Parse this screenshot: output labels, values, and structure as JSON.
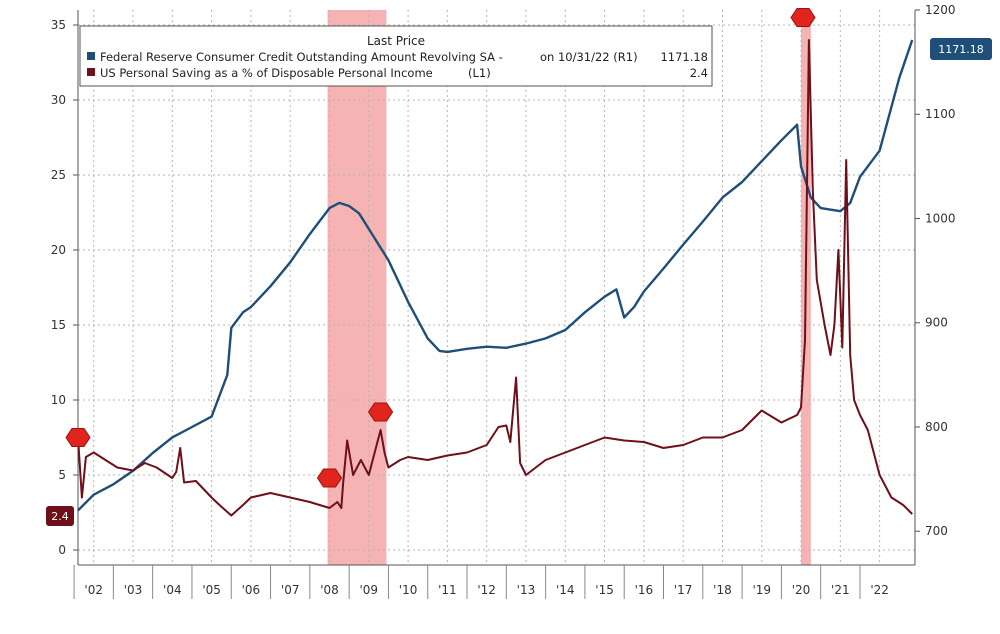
{
  "chart_data": {
    "type": "line",
    "legend_title": "Last Price",
    "x_tick_labels": [
      "'02",
      "'03",
      "'04",
      "'05",
      "'06",
      "'07",
      "'08",
      "'09",
      "'10",
      "'11",
      "'12",
      "'13",
      "'14",
      "'15",
      "'16",
      "'17",
      "'18",
      "'19",
      "'20",
      "'21",
      "'22"
    ],
    "x_range": [
      2001.6,
      2022.9
    ],
    "y_left": {
      "range": [
        -1,
        36
      ],
      "ticks": [
        0,
        5,
        10,
        15,
        20,
        25,
        30,
        35
      ]
    },
    "y_right": {
      "range": [
        667.6,
        1200
      ],
      "ticks": [
        700,
        800,
        900,
        1000,
        1100,
        1200
      ]
    },
    "grid": true,
    "legend_placement": "top",
    "shaded_periods": [
      {
        "start": 2007.95,
        "end": 2009.45
      },
      {
        "start": 2020.0,
        "end": 2020.25
      }
    ],
    "series": [
      {
        "name": "Federal Reserve Consumer Credit Outstanding Amount Revolving SA -",
        "legend_suffix": "on 10/31/22  (R1)",
        "last_value": "1171.18",
        "axis": "right",
        "color": "#1f4e79",
        "x": [
          2001.6,
          2002.0,
          2002.5,
          2003.0,
          2003.5,
          2004.0,
          2004.5,
          2005.0,
          2005.4,
          2005.5,
          2005.8,
          2006.0,
          2006.5,
          2007.0,
          2007.5,
          2008.0,
          2008.25,
          2008.5,
          2008.75,
          2009.0,
          2009.5,
          2010.0,
          2010.5,
          2010.8,
          2011.0,
          2011.5,
          2012.0,
          2012.5,
          2013.0,
          2013.5,
          2014.0,
          2014.5,
          2015.0,
          2015.3,
          2015.5,
          2015.75,
          2016.0,
          2016.5,
          2017.0,
          2017.5,
          2018.0,
          2018.5,
          2019.0,
          2019.5,
          2019.9,
          2020.0,
          2020.25,
          2020.5,
          2021.0,
          2021.25,
          2021.5,
          2022.0,
          2022.5,
          2022.83
        ],
        "values": [
          720,
          735,
          745,
          758,
          775,
          790,
          800,
          810,
          850,
          895,
          910,
          915,
          935,
          958,
          985,
          1010,
          1015,
          1012,
          1005,
          990,
          960,
          920,
          885,
          873,
          872,
          875,
          877,
          876,
          880,
          885,
          893,
          910,
          925,
          932,
          905,
          915,
          930,
          952,
          975,
          997,
          1020,
          1035,
          1055,
          1075,
          1090,
          1050,
          1020,
          1010,
          1007,
          1015,
          1040,
          1065,
          1135,
          1171.18
        ]
      },
      {
        "name": "US Personal Saving as a % of Disposable Personal Income",
        "legend_suffix": "(L1)",
        "last_value": "2.4",
        "axis": "left",
        "color": "#6e0f1a",
        "x": [
          2001.6,
          2001.7,
          2001.8,
          2002.0,
          2002.3,
          2002.6,
          2003.0,
          2003.3,
          2003.6,
          2004.0,
          2004.1,
          2004.2,
          2004.3,
          2004.6,
          2005.0,
          2005.2,
          2005.5,
          2005.8,
          2006.0,
          2006.5,
          2007.0,
          2007.5,
          2008.0,
          2008.2,
          2008.3,
          2008.35,
          2008.45,
          2008.6,
          2008.8,
          2009.0,
          2009.1,
          2009.3,
          2009.4,
          2009.5,
          2009.8,
          2010.0,
          2010.5,
          2011.0,
          2011.5,
          2012.0,
          2012.3,
          2012.5,
          2012.6,
          2012.75,
          2012.85,
          2013.0,
          2013.5,
          2014.0,
          2014.5,
          2015.0,
          2015.5,
          2016.0,
          2016.5,
          2017.0,
          2017.5,
          2018.0,
          2018.5,
          2019.0,
          2019.5,
          2019.9,
          2020.0,
          2020.1,
          2020.2,
          2020.3,
          2020.4,
          2020.6,
          2020.75,
          2020.85,
          2020.95,
          2021.05,
          2021.15,
          2021.25,
          2021.35,
          2021.5,
          2021.7,
          2022.0,
          2022.3,
          2022.6,
          2022.83
        ],
        "values": [
          7.5,
          3.5,
          6.2,
          6.5,
          6.0,
          5.5,
          5.3,
          5.8,
          5.5,
          4.8,
          5.2,
          6.8,
          4.5,
          4.6,
          3.5,
          3.0,
          2.3,
          3.0,
          3.5,
          3.8,
          3.5,
          3.2,
          2.8,
          3.2,
          2.8,
          4.5,
          7.3,
          5.0,
          6.0,
          5.0,
          6.0,
          8.0,
          6.5,
          5.5,
          6.0,
          6.2,
          6.0,
          6.3,
          6.5,
          7.0,
          8.2,
          8.3,
          7.2,
          11.5,
          5.8,
          5.0,
          6.0,
          6.5,
          7.0,
          7.5,
          7.3,
          7.2,
          6.8,
          7.0,
          7.5,
          7.5,
          8.0,
          9.3,
          8.5,
          9.0,
          9.5,
          14.0,
          34.0,
          24.0,
          18.0,
          15.0,
          13.0,
          15.0,
          20.0,
          13.5,
          26.0,
          13.0,
          10.0,
          9.0,
          8.0,
          5.0,
          3.5,
          3.0,
          2.4
        ]
      }
    ],
    "edge_markers": [
      {
        "axis": "left",
        "x": 2001.6,
        "y": 7.5
      },
      {
        "axis": "left",
        "x": 2008.0,
        "y": 4.8
      },
      {
        "axis": "left",
        "x": 2009.3,
        "y": 9.2
      },
      {
        "axis": "left",
        "x": 2020.05,
        "y": 35.5
      }
    ]
  }
}
